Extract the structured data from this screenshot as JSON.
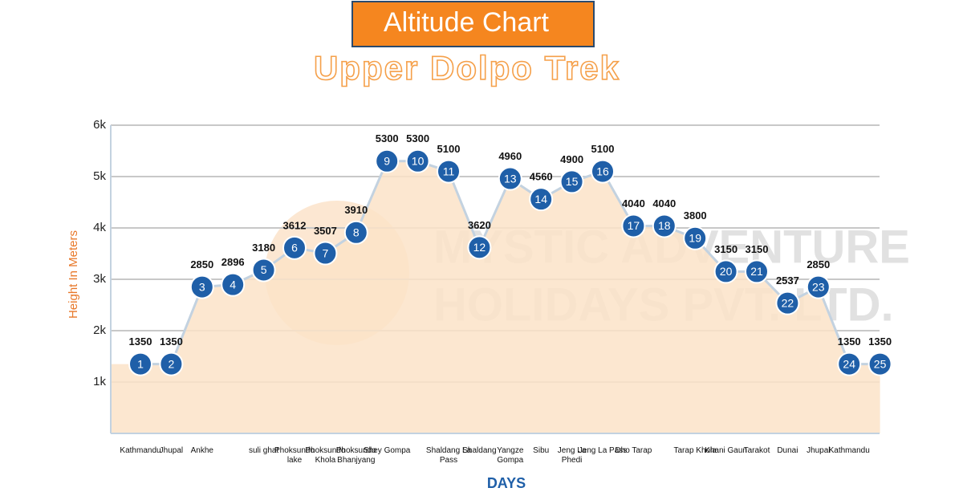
{
  "chart_data": {
    "type": "area",
    "title": "Altitude Chart",
    "subtitle": "Upper Dolpo Trek",
    "y_label": "Height In Meters",
    "x_label": "DAYS",
    "watermark": [
      "MYSTIC ADVENTURE",
      "HOLIDAYS PVT. LTD."
    ],
    "days": [
      1,
      2,
      3,
      4,
      5,
      6,
      7,
      8,
      9,
      10,
      11,
      12,
      13,
      14,
      15,
      16,
      17,
      18,
      19,
      20,
      21,
      22,
      23,
      24,
      25
    ],
    "categories": [
      "Kathmandu",
      "Jhupal",
      "Ankhe",
      null,
      "suli ghat",
      "Phoksundo lake",
      "Phoksundo Khola",
      "Phoksundo Bhanjyang",
      "Shey Gompa",
      null,
      "Shaldang La Pass",
      "Shaldang",
      "Yangze Gompa",
      "Sibu",
      "Jeng La Phedi",
      "Jeng La Pass",
      "Dho Tarap",
      null,
      "Tarap Khola",
      "Khani Gaun",
      "Tarakot",
      "Dunai",
      "Jhupal",
      "Kathmandu",
      null
    ],
    "values": [
      1350,
      1350,
      2850,
      2896,
      3180,
      3612,
      3507,
      3910,
      5300,
      5300,
      5100,
      3620,
      4960,
      4560,
      4900,
      5100,
      4040,
      4040,
      3800,
      3150,
      3150,
      2537,
      2850,
      1350,
      1350
    ],
    "color": "#1f5fa8",
    "area_color": "#fbe3c8",
    "line_color": "#c3d2e0",
    "ylim": [
      0,
      6000
    ],
    "yticks": [
      {
        "value": 1000,
        "label": "1k"
      },
      {
        "value": 2000,
        "label": "2k"
      },
      {
        "value": 3000,
        "label": "3k"
      },
      {
        "value": 4000,
        "label": "4k"
      },
      {
        "value": 5000,
        "label": "5k"
      },
      {
        "value": 6000,
        "label": "6k"
      }
    ],
    "grid": true
  }
}
